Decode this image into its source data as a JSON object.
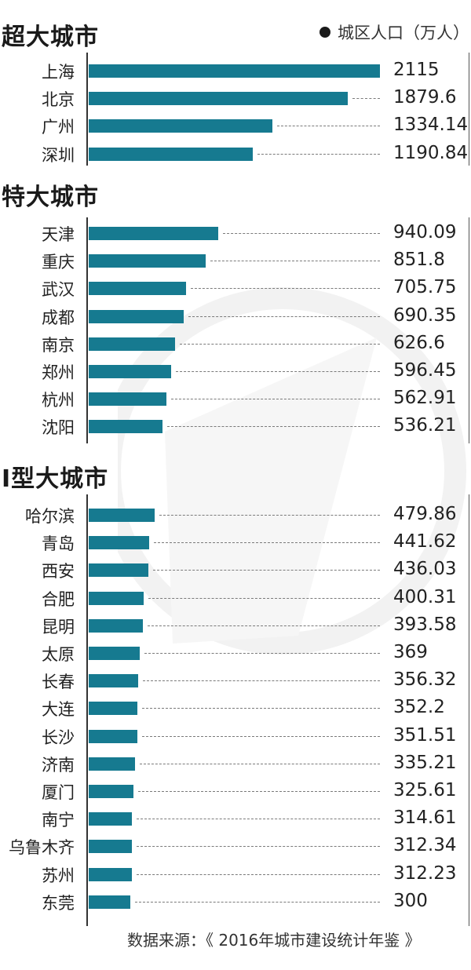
{
  "legend": {
    "label": "城区人口（万人）",
    "icon": "filled-circle-icon"
  },
  "colors": {
    "bar": "#167a90",
    "axis": "#333333",
    "leader": "#7a7a7a"
  },
  "source": "数据来源：《 2016年城市建设统计年鉴 》",
  "sections": [
    {
      "title": "超大城市",
      "cities": [
        {
          "name": "上海",
          "value": "2115"
        },
        {
          "name": "北京",
          "value": "1879.6"
        },
        {
          "name": "广州",
          "value": "1334.14"
        },
        {
          "name": "深圳",
          "value": "1190.84"
        }
      ]
    },
    {
      "title": "特大城市",
      "cities": [
        {
          "name": "天津",
          "value": "940.09"
        },
        {
          "name": "重庆",
          "value": "851.8"
        },
        {
          "name": "武汉",
          "value": "705.75"
        },
        {
          "name": "成都",
          "value": "690.35"
        },
        {
          "name": "南京",
          "value": "626.6"
        },
        {
          "name": "郑州",
          "value": "596.45"
        },
        {
          "name": "杭州",
          "value": "562.91"
        },
        {
          "name": "沈阳",
          "value": "536.21"
        }
      ]
    },
    {
      "title": "Ⅰ型大城市",
      "cities": [
        {
          "name": "哈尔滨",
          "value": "479.86"
        },
        {
          "name": "青岛",
          "value": "441.62"
        },
        {
          "name": "西安",
          "value": "436.03"
        },
        {
          "name": "合肥",
          "value": "400.31"
        },
        {
          "name": "昆明",
          "value": "393.58"
        },
        {
          "name": "太原",
          "value": "369"
        },
        {
          "name": "长春",
          "value": "356.32"
        },
        {
          "name": "大连",
          "value": "352.2"
        },
        {
          "name": "长沙",
          "value": "351.51"
        },
        {
          "name": "济南",
          "value": "335.21"
        },
        {
          "name": "厦门",
          "value": "325.61"
        },
        {
          "name": "南宁",
          "value": "314.61"
        },
        {
          "name": "乌鲁木齐",
          "value": "312.34"
        },
        {
          "name": "苏州",
          "value": "312.23"
        },
        {
          "name": "东莞",
          "value": "300"
        }
      ]
    }
  ],
  "chart_data": {
    "type": "bar",
    "orientation": "horizontal",
    "title": "",
    "legend": [
      "城区人口（万人）"
    ],
    "xlabel": "",
    "ylabel": "",
    "grid": false,
    "groups": [
      {
        "name": "超大城市",
        "categories": [
          "上海",
          "北京",
          "广州",
          "深圳"
        ],
        "values": [
          2115,
          1879.6,
          1334.14,
          1190.84
        ]
      },
      {
        "name": "特大城市",
        "categories": [
          "天津",
          "重庆",
          "武汉",
          "成都",
          "南京",
          "郑州",
          "杭州",
          "沈阳"
        ],
        "values": [
          940.09,
          851.8,
          705.75,
          690.35,
          626.6,
          596.45,
          562.91,
          536.21
        ]
      },
      {
        "name": "Ⅰ型大城市",
        "categories": [
          "哈尔滨",
          "青岛",
          "西安",
          "合肥",
          "昆明",
          "太原",
          "长春",
          "大连",
          "长沙",
          "济南",
          "厦门",
          "南宁",
          "乌鲁木齐",
          "苏州",
          "东莞"
        ],
        "values": [
          479.86,
          441.62,
          436.03,
          400.31,
          393.58,
          369,
          356.32,
          352.2,
          351.51,
          335.21,
          325.61,
          314.61,
          312.34,
          312.23,
          300
        ]
      }
    ],
    "annotation": "数据来源：《 2016年城市建设统计年鉴 》"
  }
}
